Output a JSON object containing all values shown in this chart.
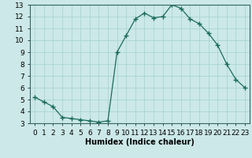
{
  "x": [
    0,
    1,
    2,
    3,
    4,
    5,
    6,
    7,
    8,
    9,
    10,
    11,
    12,
    13,
    14,
    15,
    16,
    17,
    18,
    19,
    20,
    21,
    22,
    23
  ],
  "y": [
    5.2,
    4.8,
    4.4,
    3.5,
    3.4,
    3.3,
    3.2,
    3.1,
    3.2,
    9.0,
    10.4,
    11.8,
    12.3,
    11.9,
    12.0,
    13.0,
    12.7,
    11.8,
    11.4,
    10.6,
    9.6,
    8.0,
    6.7,
    6.0
  ],
  "line_color": "#1a6b5a",
  "marker": "+",
  "marker_size": 4,
  "bg_color": "#cce8e8",
  "grid_color": "#aad4d4",
  "xlabel": "Humidex (Indice chaleur)",
  "xlim": [
    -0.5,
    23.5
  ],
  "ylim": [
    3,
    13
  ],
  "yticks": [
    3,
    4,
    5,
    6,
    7,
    8,
    9,
    10,
    11,
    12,
    13
  ],
  "xtick_labels": [
    "0",
    "1",
    "2",
    "3",
    "4",
    "5",
    "6",
    "7",
    "8",
    "9",
    "10",
    "11",
    "12",
    "13",
    "14",
    "15",
    "16",
    "17",
    "18",
    "19",
    "20",
    "21",
    "22",
    "23"
  ],
  "label_fontsize": 7,
  "tick_fontsize": 6.5
}
